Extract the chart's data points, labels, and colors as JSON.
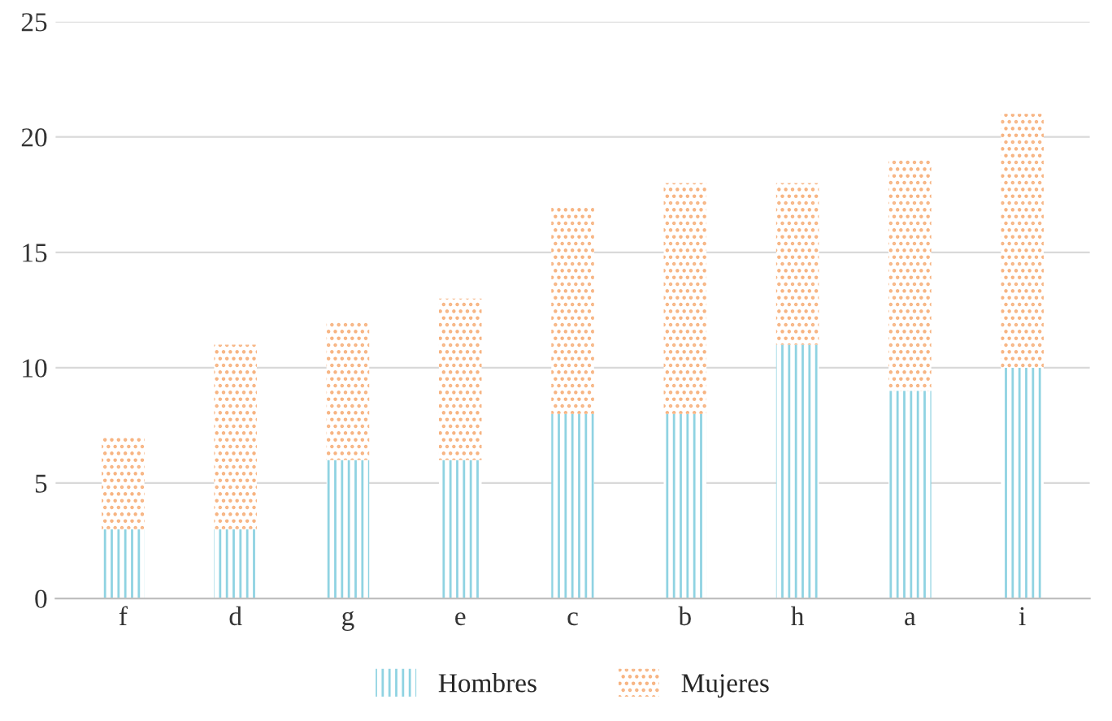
{
  "chart_data": {
    "type": "bar",
    "stacked": true,
    "categories": [
      "f",
      "d",
      "g",
      "e",
      "c",
      "b",
      "h",
      "a",
      "i"
    ],
    "series": [
      {
        "name": "Hombres",
        "color": "#8fd3e2",
        "values": [
          3,
          3,
          6,
          6,
          8,
          8,
          11,
          9,
          10
        ]
      },
      {
        "name": "Mujeres",
        "color": "#f7b380",
        "values": [
          4,
          8,
          6,
          7,
          9,
          10,
          7,
          10,
          11
        ]
      }
    ],
    "ylim": [
      0,
      25
    ],
    "yticks": [
      0,
      5,
      10,
      15,
      20,
      25
    ],
    "grid": "y",
    "legend": "bottom"
  }
}
